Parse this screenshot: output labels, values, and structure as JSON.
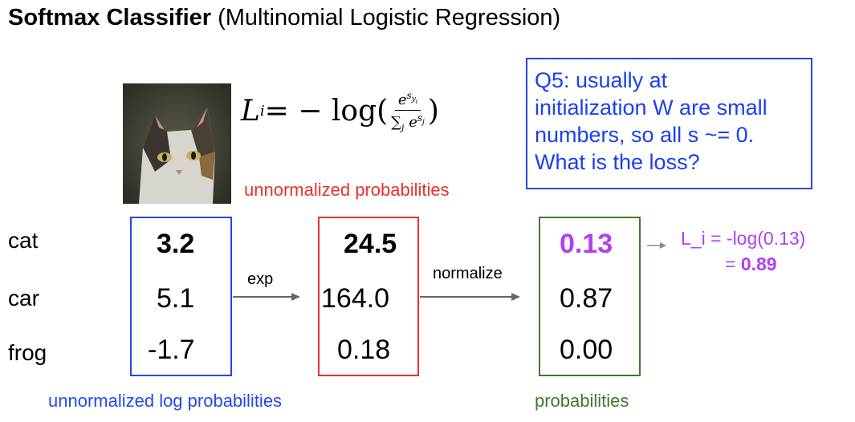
{
  "title": {
    "bold": "Softmax Classifier",
    "rest": " (Multinomial Logistic Regression)"
  },
  "formula": {
    "lhs": "L",
    "sub": "i",
    "eq": " = − log(",
    "num": "e^{s_{y_i}}",
    "den": "∑_j e^{s_j}",
    "close": ")"
  },
  "notes": {
    "unnormalized_probabilities": "unnormalized probabilities",
    "unnormalized_log_probabilities": "unnormalized log probabilities",
    "probabilities": "probabilities"
  },
  "question": {
    "lines": [
      "Q5: usually at",
      "initialization W are small",
      "numbers, so all s ~= 0.",
      "What is the loss?"
    ]
  },
  "classes": [
    "cat",
    "car",
    "frog"
  ],
  "scores": [
    "3.2",
    "5.1",
    "-1.7"
  ],
  "exp_values": [
    "24.5",
    "164.0",
    "0.18"
  ],
  "probs": [
    "0.13",
    "0.87",
    "0.00"
  ],
  "arrows": {
    "exp": "exp",
    "normalize": "normalize"
  },
  "loss": {
    "line1": "L_i = -log(0.13)",
    "line2_prefix": "= ",
    "line2_value": "0.89"
  },
  "colors": {
    "blue": "#2347f0",
    "red": "#e8312e",
    "green": "#3c7a2a",
    "purple": "#b040f0"
  }
}
